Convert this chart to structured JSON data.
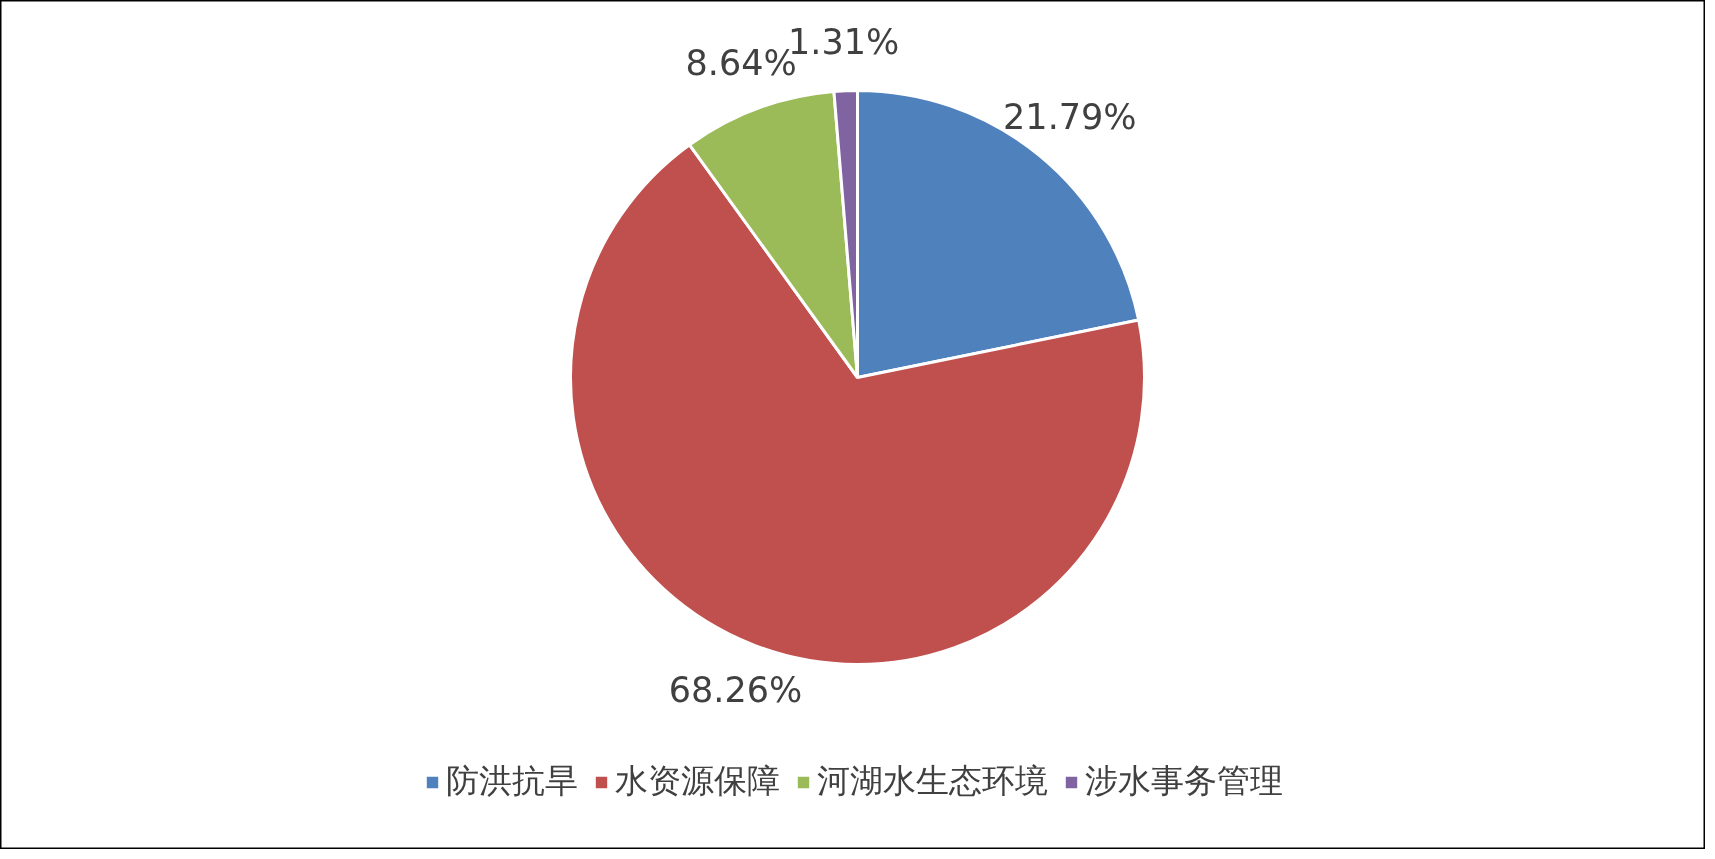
{
  "chart_data": {
    "type": "pie",
    "categories": [
      "防洪抗旱",
      "水资源保障",
      "河湖水生态环境",
      "涉水事务管理"
    ],
    "values": [
      21.79,
      68.26,
      8.64,
      1.31
    ],
    "colors": [
      "#4f81bd",
      "#c0504d",
      "#9bbb59",
      "#8064a2"
    ],
    "value_labels": [
      "21.79%",
      "68.26%",
      "8.64%",
      "1.31%"
    ],
    "legend": "bottom"
  }
}
